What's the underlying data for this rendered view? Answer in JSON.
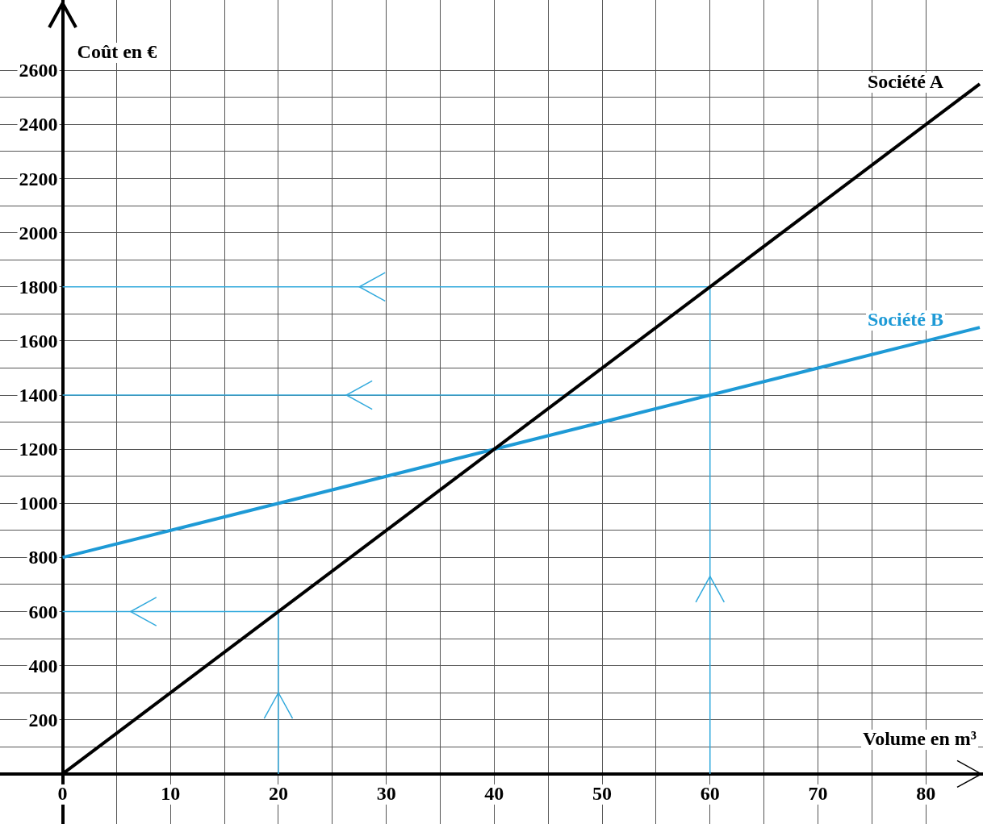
{
  "chart_data": {
    "type": "line",
    "xlabel": "Volume en m³",
    "ylabel": "Coût en €",
    "xlim": [
      -5.8,
      85.3
    ],
    "ylim": [
      -185,
      2860
    ],
    "xticks": [
      0,
      {
        "value": 5,
        "label": null
      },
      10,
      {
        "value": 15,
        "label": null
      },
      20,
      {
        "value": 25,
        "label": null
      },
      30,
      {
        "value": 35,
        "label": null
      },
      40,
      {
        "value": 45,
        "label": null
      },
      50,
      {
        "value": 55,
        "label": null
      },
      60,
      {
        "value": 65,
        "label": null
      },
      70,
      {
        "value": 75,
        "label": null
      },
      80
    ],
    "yticks": [
      {
        "value": 0,
        "label": null
      },
      {
        "value": 100,
        "label": null
      },
      200,
      {
        "value": 300,
        "label": null
      },
      400,
      {
        "value": 500,
        "label": null
      },
      600,
      {
        "value": 700,
        "label": null
      },
      800,
      {
        "value": 900,
        "label": null
      },
      1000,
      {
        "value": 1100,
        "label": null
      },
      1200,
      {
        "value": 1300,
        "label": null
      },
      1400,
      {
        "value": 1500,
        "label": null
      },
      1600,
      {
        "value": 1700,
        "label": null
      },
      1800,
      {
        "value": 1900,
        "label": null
      },
      2000,
      {
        "value": 2100,
        "label": null
      },
      2200,
      {
        "value": 2300,
        "label": null
      },
      2400,
      {
        "value": 2500,
        "label": null
      },
      2600
    ],
    "grid": true,
    "legend": false,
    "marker": "none",
    "line_style": "solid",
    "series": [
      {
        "name": "Société A",
        "color": "#000000",
        "x": [
          0,
          85
        ],
        "values": [
          0,
          2550
        ]
      },
      {
        "name": "Société B",
        "color": "#1e9ad6",
        "x": [
          0,
          85
        ],
        "values": [
          800,
          1650
        ]
      },
      {
        "color": "#33aadd",
        "x": [
          20,
          20,
          0
        ],
        "values": [
          0,
          600,
          600
        ]
      },
      {
        "color": "#33aadd",
        "x": [
          60,
          60,
          0
        ],
        "values": [
          0,
          1800,
          1800
        ]
      },
      {
        "color": "#33aadd",
        "x": [
          60,
          0
        ],
        "values": [
          1400,
          1400
        ]
      }
    ]
  }
}
